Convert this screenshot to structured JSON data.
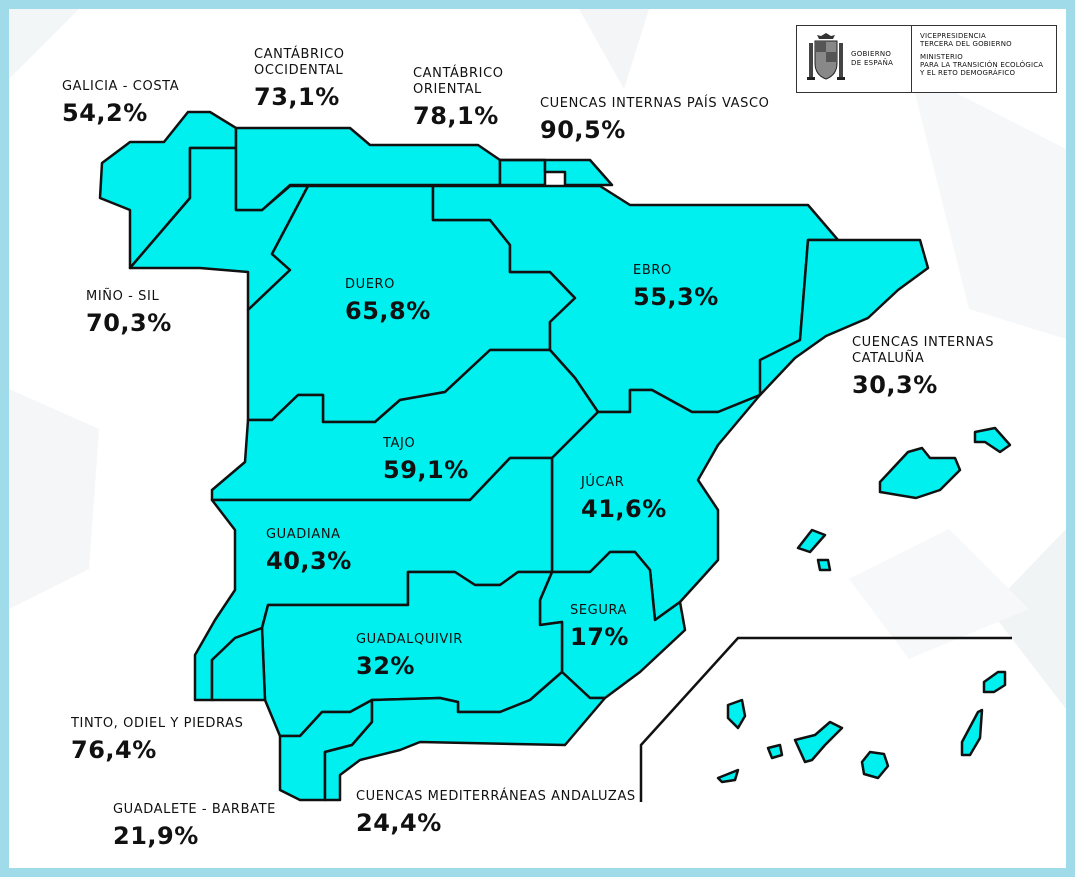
{
  "logo": {
    "gov_line1": "GOBIERNO",
    "gov_line2": "DE ESPAÑA",
    "vicepresidencia": "VICEPRESIDENCIA\nTERCERA DEL GOBIERNO",
    "ministerio": "MINISTERIO\nPARA LA TRANSICIÓN ECOLÓGICA\nY EL RETO DEMOGRÁFICO"
  },
  "colors": {
    "region_fill": "#00f0f0",
    "border": "#111111",
    "frame": "#9fdbe8"
  },
  "basins": [
    {
      "id": "galicia-costa",
      "name": "GALICIA - COSTA",
      "value": "54,2%"
    },
    {
      "id": "cantabrico-occidental",
      "name": "CANTÁBRICO\nOCCIDENTAL",
      "value": "73,1%"
    },
    {
      "id": "cantabrico-oriental",
      "name": "CANTÁBRICO\nORIENTAL",
      "value": "78,1%"
    },
    {
      "id": "pais-vasco",
      "name": "CUENCAS INTERNAS PAÍS VASCO",
      "value": "90,5%"
    },
    {
      "id": "mino-sil",
      "name": "MIÑO - SIL",
      "value": "70,3%"
    },
    {
      "id": "duero",
      "name": "DUERO",
      "value": "65,8%"
    },
    {
      "id": "ebro",
      "name": "EBRO",
      "value": "55,3%"
    },
    {
      "id": "cataluna",
      "name": "CUENCAS INTERNAS\nCATALUÑA",
      "value": "30,3%"
    },
    {
      "id": "tajo",
      "name": "TAJO",
      "value": "59,1%"
    },
    {
      "id": "jucar",
      "name": "JÚCAR",
      "value": "41,6%"
    },
    {
      "id": "guadiana",
      "name": "GUADIANA",
      "value": "40,3%"
    },
    {
      "id": "segura",
      "name": "SEGURA",
      "value": "17%"
    },
    {
      "id": "guadalquivir",
      "name": "GUADALQUIVIR",
      "value": "32%"
    },
    {
      "id": "tinto-odiel",
      "name": "TINTO, ODIEL Y PIEDRAS",
      "value": "76,4%"
    },
    {
      "id": "guadalete-barbate",
      "name": "GUADALETE - BARBATE",
      "value": "21,9%"
    },
    {
      "id": "mediterraneas-andaluzas",
      "name": "CUENCAS MEDITERRÁNEAS ANDALUZAS",
      "value": "24,4%"
    }
  ]
}
